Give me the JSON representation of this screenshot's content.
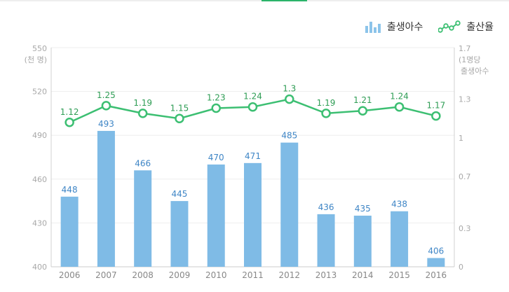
{
  "legend": {
    "births_label": "출생아수",
    "rate_label": "출산율",
    "births_icon": "bar-chart-icon",
    "rate_icon": "line-chart-icon"
  },
  "colors": {
    "bar": "#7fbbe6",
    "line": "#3cbf72",
    "bar_label": "#3f86c6",
    "line_label": "#2f9d55",
    "accent": "#2bb46a"
  },
  "chart_data": {
    "type": "bar+line",
    "categories": [
      "2006",
      "2007",
      "2008",
      "2009",
      "2010",
      "2011",
      "2012",
      "2013",
      "2014",
      "2015",
      "2016"
    ],
    "series": [
      {
        "name": "출생아수",
        "type": "bar",
        "axis": "left",
        "values": [
          448,
          493,
          466,
          445,
          470,
          471,
          485,
          436,
          435,
          438,
          406
        ]
      },
      {
        "name": "출산율",
        "type": "line",
        "axis": "right",
        "values": [
          1.12,
          1.25,
          1.19,
          1.15,
          1.23,
          1.24,
          1.3,
          1.19,
          1.21,
          1.24,
          1.17
        ]
      }
    ],
    "left_axis": {
      "label_lines": [
        "550",
        "(천 명)"
      ],
      "ticks": [
        400,
        430,
        460,
        490,
        520
      ],
      "range": [
        400,
        550
      ]
    },
    "right_axis": {
      "label_lines": [
        "1.7",
        "(1명당",
        "출생아수"
      ],
      "ticks": [
        "0",
        "0.3",
        "0.7",
        "1",
        "1.3"
      ],
      "tick_values": [
        0,
        0.3,
        0.7,
        1,
        1.3
      ],
      "range": [
        0,
        1.7
      ]
    },
    "grid": true,
    "legend_position": "top-right"
  }
}
